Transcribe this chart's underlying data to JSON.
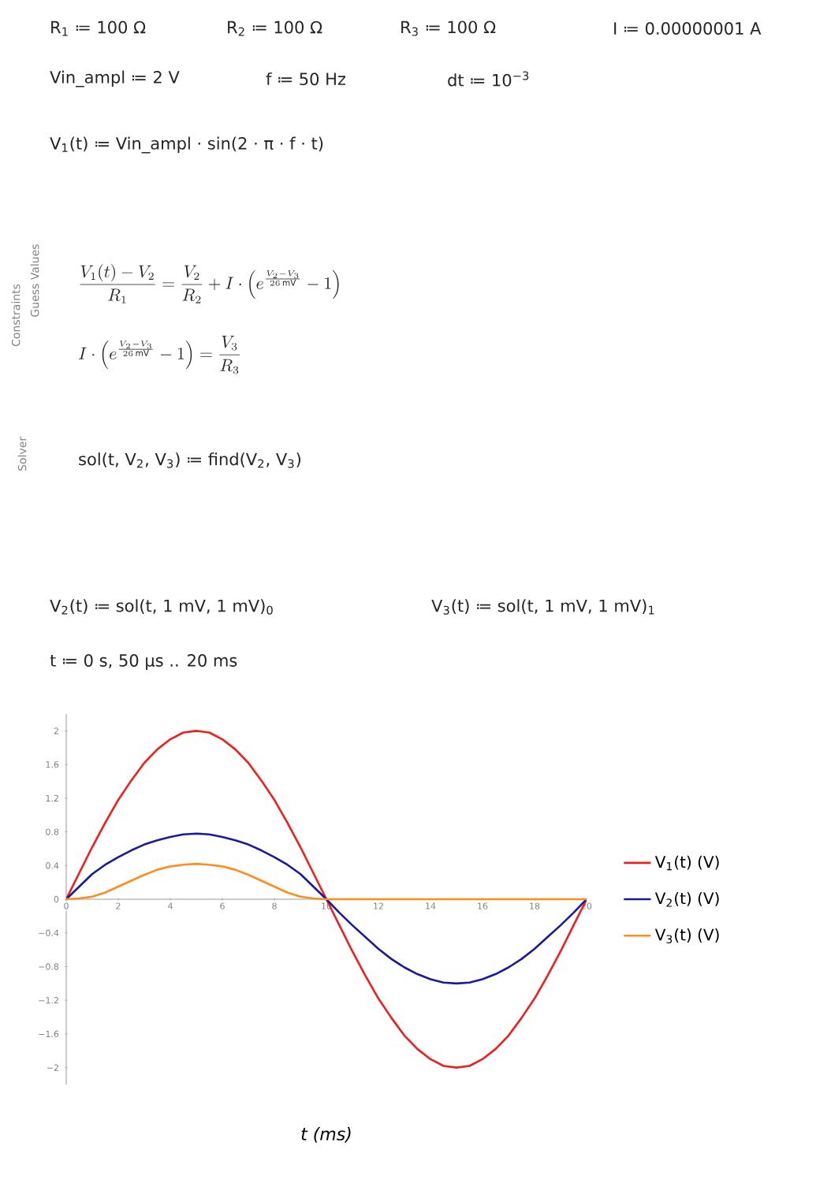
{
  "chart_data": {
    "type": "line",
    "xlabel": "t (ms)",
    "x": [
      0,
      0.5,
      1,
      1.5,
      2,
      2.5,
      3,
      3.5,
      4,
      4.5,
      5,
      5.5,
      6,
      6.5,
      7,
      7.5,
      8,
      8.5,
      9,
      9.5,
      10,
      10.5,
      11,
      11.5,
      12,
      12.5,
      13,
      13.5,
      14,
      14.5,
      15,
      15.5,
      16,
      16.5,
      17,
      17.5,
      18,
      18.5,
      19,
      19.5,
      20
    ],
    "series": [
      {
        "name": "V$_{1}$(t) (V)",
        "color": "#f01e1e",
        "values": [
          0,
          0.31,
          0.62,
          0.91,
          1.18,
          1.41,
          1.62,
          1.78,
          1.9,
          1.98,
          2,
          1.98,
          1.9,
          1.78,
          1.62,
          1.41,
          1.18,
          0.91,
          0.62,
          0.31,
          0,
          -0.31,
          -0.62,
          -0.91,
          -1.18,
          -1.41,
          -1.62,
          -1.78,
          -1.9,
          -1.98,
          -2,
          -1.98,
          -1.9,
          -1.78,
          -1.62,
          -1.41,
          -1.18,
          -0.91,
          -0.62,
          -0.31,
          0
        ]
      },
      {
        "name": "V$_{2}$(t) (V)",
        "color": "#1a1a9c",
        "values": [
          0,
          0.15,
          0.3,
          0.41,
          0.5,
          0.58,
          0.65,
          0.7,
          0.74,
          0.77,
          0.78,
          0.77,
          0.74,
          0.7,
          0.65,
          0.58,
          0.5,
          0.41,
          0.3,
          0.15,
          0,
          -0.16,
          -0.31,
          -0.45,
          -0.59,
          -0.71,
          -0.81,
          -0.89,
          -0.95,
          -0.99,
          -1,
          -0.99,
          -0.95,
          -0.89,
          -0.81,
          -0.71,
          -0.59,
          -0.45,
          -0.31,
          -0.16,
          0
        ]
      },
      {
        "name": "V$_{3}$(t) (V)",
        "color": "#ff8c1e",
        "values": [
          0,
          0.01,
          0.03,
          0.08,
          0.15,
          0.22,
          0.29,
          0.35,
          0.39,
          0.41,
          0.42,
          0.41,
          0.39,
          0.35,
          0.29,
          0.22,
          0.15,
          0.08,
          0.03,
          0.01,
          0,
          0,
          0,
          0,
          0,
          0,
          0,
          0,
          0,
          0,
          0,
          0,
          0,
          0,
          0,
          0,
          0,
          0,
          0,
          0,
          0
        ]
      }
    ],
    "xlim": [
      0,
      20
    ],
    "ylim": [
      -2.2,
      2.2
    ],
    "xticks": [
      0,
      2,
      4,
      6,
      8,
      10,
      12,
      14,
      16,
      18,
      20
    ],
    "yticks": [
      {
        "value": -2,
        "label": "−2"
      },
      {
        "value": -1.6,
        "label": "−1.6"
      },
      {
        "value": -1.2,
        "label": "−1.2"
      },
      {
        "value": -0.8,
        "label": "−0.8"
      },
      {
        "value": -0.4,
        "label": "−0.4"
      },
      0,
      0.4,
      0.8,
      1.2,
      1.6,
      2
    ],
    "legend": "right",
    "annotations": [
      "R$_{1}$ ≔ 100 Ω",
      "R$_{2}$ ≔ 100 Ω",
      "R$_{3}$ ≔ 100 Ω",
      "I ≔ 0.00000001 A",
      "Vin_ampl ≔ 2 V",
      "f ≔ 50 Hz",
      "dt ≔ 10$^{−3}$",
      "V$_{1}$(t) ≔ Vin_ampl · sin(2 · π · f · t)",
      "Guess Values",
      "Constraints",
      "\\frac{V_1(t)-V_2}{R_1}=\\frac{V_2}{R_2}+I\\cdot\\left(e^{\\frac{V_2-V_3}{26\\,\\mathrm{mV}}}-1\\right)",
      "I\\cdot\\left(e^{\\frac{V_2-V_3}{26\\,\\mathrm{mV}}}-1\\right)=\\frac{V_3}{R_3}",
      "Solver",
      "sol(t, V$_{2}$, V$_{3}$) ≔ find(V$_{2}$, V$_{3}$)",
      "V$_{2}$(t) ≔ sol(t, 1 mV, 1 mV)$_{0}$",
      "V$_{3}$(t) ≔ sol(t, 1 mV, 1 mV)$_{1}$",
      "t ≔ 0 s, 50 μs .. 20 ms"
    ]
  }
}
